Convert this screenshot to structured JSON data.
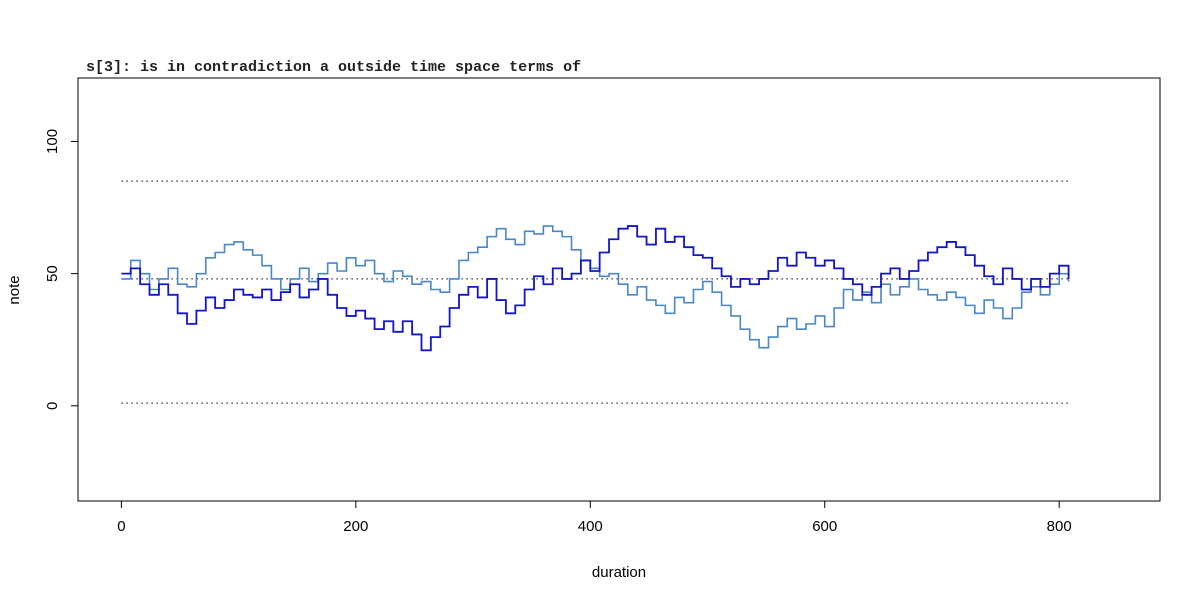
{
  "chart_data": {
    "type": "line",
    "title": "s[3]: is in contradiction a outside time space terms of",
    "xlabel": "duration",
    "ylabel": "note",
    "xlim": [
      -37,
      886
    ],
    "ylim": [
      -36,
      124
    ],
    "x_ticks": [
      0,
      200,
      400,
      600,
      800
    ],
    "y_ticks": [
      0,
      50,
      100
    ],
    "reference_lines": [
      1,
      48,
      85
    ],
    "reference_x_range": [
      0,
      808
    ],
    "grid": false,
    "legend": "none",
    "colors": {
      "series_a": "#1414c8",
      "series_b": "#4a86c8",
      "reference": "#000000"
    },
    "series": [
      {
        "step": true,
        "x": [
          0,
          8,
          16,
          24,
          32,
          40,
          48,
          56,
          64,
          72,
          80,
          88,
          96,
          104,
          112,
          120,
          128,
          136,
          144,
          152,
          160,
          168,
          176,
          184,
          192,
          200,
          208,
          216,
          224,
          232,
          240,
          248,
          256,
          264,
          272,
          280,
          288,
          296,
          304,
          312,
          320,
          328,
          336,
          344,
          352,
          360,
          368,
          376,
          384,
          392,
          400,
          408,
          416,
          424,
          432,
          440,
          448,
          456,
          464,
          472,
          480,
          488,
          496,
          504,
          512,
          520,
          528,
          536,
          544,
          552,
          560,
          568,
          576,
          584,
          592,
          600,
          608,
          616,
          624,
          632,
          640,
          648,
          656,
          664,
          672,
          680,
          688,
          696,
          704,
          712,
          720,
          728,
          736,
          744,
          752,
          760,
          768,
          776,
          784,
          792,
          800,
          808
        ],
        "values": [
          50,
          52,
          46,
          42,
          46,
          42,
          35,
          31,
          36,
          41,
          37,
          40,
          44,
          42,
          41,
          44,
          40,
          43,
          46,
          41,
          44,
          48,
          42,
          37,
          34,
          36,
          33,
          29,
          32,
          28,
          32,
          27,
          21,
          26,
          30,
          37,
          42,
          45,
          41,
          48,
          40,
          35,
          38,
          44,
          49,
          46,
          52,
          48,
          50,
          55,
          51,
          58,
          63,
          67,
          68,
          64,
          61,
          67,
          62,
          64,
          60,
          57,
          56,
          52,
          49,
          45,
          48,
          46,
          48,
          51,
          56,
          53,
          58,
          56,
          53,
          55,
          52,
          48,
          46,
          42,
          45,
          50,
          52,
          48,
          51,
          55,
          58,
          60,
          62,
          60,
          57,
          53,
          49,
          46,
          52,
          48,
          44,
          48,
          45,
          50,
          53,
          48
        ]
      },
      {
        "step": true,
        "x": [
          0,
          8,
          16,
          24,
          32,
          40,
          48,
          56,
          64,
          72,
          80,
          88,
          96,
          104,
          112,
          120,
          128,
          136,
          144,
          152,
          160,
          168,
          176,
          184,
          192,
          200,
          208,
          216,
          224,
          232,
          240,
          248,
          256,
          264,
          272,
          280,
          288,
          296,
          304,
          312,
          320,
          328,
          336,
          344,
          352,
          360,
          368,
          376,
          384,
          392,
          400,
          408,
          416,
          424,
          432,
          440,
          448,
          456,
          464,
          472,
          480,
          488,
          496,
          504,
          512,
          520,
          528,
          536,
          544,
          552,
          560,
          568,
          576,
          584,
          592,
          600,
          608,
          616,
          624,
          632,
          640,
          648,
          656,
          664,
          672,
          680,
          688,
          696,
          704,
          712,
          720,
          728,
          736,
          744,
          752,
          760,
          768,
          776,
          784,
          792,
          800,
          808
        ],
        "values": [
          48,
          55,
          50,
          44,
          48,
          52,
          46,
          45,
          50,
          56,
          58,
          61,
          62,
          59,
          57,
          53,
          48,
          44,
          48,
          52,
          47,
          50,
          54,
          51,
          56,
          53,
          55,
          50,
          47,
          51,
          49,
          46,
          47,
          44,
          43,
          48,
          55,
          58,
          60,
          64,
          67,
          63,
          61,
          66,
          65,
          68,
          66,
          64,
          59,
          55,
          52,
          49,
          50,
          46,
          42,
          45,
          40,
          38,
          35,
          41,
          39,
          44,
          47,
          43,
          38,
          34,
          29,
          25,
          22,
          26,
          30,
          33,
          29,
          31,
          34,
          30,
          37,
          44,
          40,
          43,
          39,
          46,
          42,
          45,
          48,
          44,
          42,
          40,
          43,
          41,
          38,
          35,
          40,
          37,
          33,
          37,
          43,
          45,
          42,
          46,
          50,
          47
        ]
      }
    ]
  }
}
